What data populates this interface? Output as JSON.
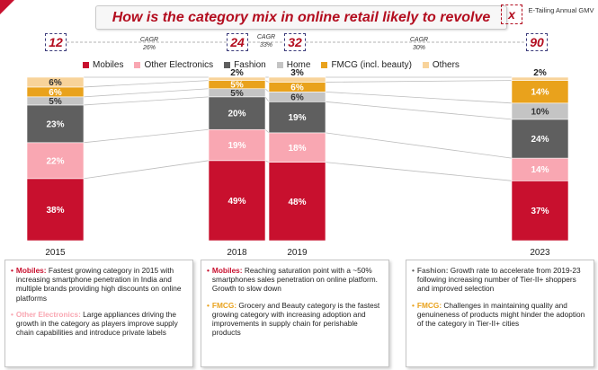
{
  "header": {
    "title": "How is the category mix in online retail likely to revolve",
    "x_badge": "x",
    "gmv_label": "E-Tailing Annual GMV"
  },
  "gmv": [
    {
      "year": "2015",
      "value": "12"
    },
    {
      "year": "2018",
      "value": "24"
    },
    {
      "year": "2019",
      "value": "32"
    },
    {
      "year": "2023",
      "value": "90"
    }
  ],
  "cagr": [
    {
      "label": "CAGR",
      "value": "26%"
    },
    {
      "label": "CAGR",
      "value": "33%"
    },
    {
      "label": "CAGR",
      "value": "30%"
    }
  ],
  "colors": {
    "accent": "#b30d1f",
    "connector": "#bdbdbd"
  },
  "chart_data": {
    "type": "bar",
    "stacked": true,
    "normalized": true,
    "categories": [
      "2015",
      "2018",
      "2019",
      "2023"
    ],
    "series": [
      {
        "name": "Mobiles",
        "color": "#c8102e",
        "values": [
          38,
          49,
          48,
          37
        ]
      },
      {
        "name": "Other Electronics",
        "color": "#f9a7b2",
        "values": [
          22,
          19,
          18,
          14
        ]
      },
      {
        "name": "Fashion",
        "color": "#5f5f5f",
        "values": [
          23,
          20,
          19,
          24
        ]
      },
      {
        "name": "Home",
        "color": "#c4c4c4",
        "values": [
          5,
          5,
          6,
          10
        ]
      },
      {
        "name": "FMCG (incl. beauty)",
        "color": "#e9a21c",
        "values": [
          6,
          5,
          6,
          14
        ]
      },
      {
        "name": "Others",
        "color": "#f8d39a",
        "values": [
          6,
          2,
          3,
          2
        ]
      }
    ],
    "legend_position": "top",
    "grid": false
  },
  "notes": [
    {
      "items": [
        {
          "key": "Mobiles:",
          "key_color": "#c8102e",
          "text": "Fastest growing category in 2015 with increasing smartphone penetration in India and multiple brands providing high discounts on online platforms"
        },
        {
          "key": "Other Electronics:",
          "key_color": "#f9a7b2",
          "text": "Large appliances driving the growth in the category as players improve supply chain capabilities and introduce private labels"
        }
      ]
    },
    {
      "items": [
        {
          "key": "Mobiles:",
          "key_color": "#c8102e",
          "text": "Reaching saturation point with a ~50% smartphones sales penetration on online platform. Growth to slow down"
        },
        {
          "key": "FMCG:",
          "key_color": "#e9a21c",
          "text": "Grocery and Beauty category is the fastest growing category with increasing adoption and improvements in supply chain for perishable products"
        }
      ]
    },
    {
      "items": [
        {
          "key": "Fashion:",
          "key_color": "#5f5f5f",
          "text": "Growth rate to accelerate from 2019-23 following increasing number of Tier-II+ shoppers and improved selection"
        },
        {
          "key": "FMCG:",
          "key_color": "#e9a21c",
          "text": "Challenges in maintaining quality and genuineness of products might hinder the adoption of the category in Tier-II+ cities"
        }
      ]
    }
  ]
}
